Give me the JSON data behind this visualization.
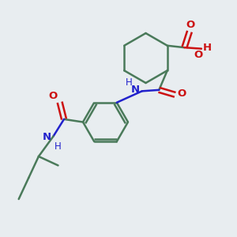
{
  "bg_color": "#e8edf0",
  "bond_color": "#4a7a5a",
  "N_color": "#2222cc",
  "O_color": "#cc1111",
  "lw": 1.8,
  "figsize": [
    3.0,
    3.0
  ],
  "dpi": 100,
  "xlim": [
    0,
    10
  ],
  "ylim": [
    0,
    10
  ]
}
